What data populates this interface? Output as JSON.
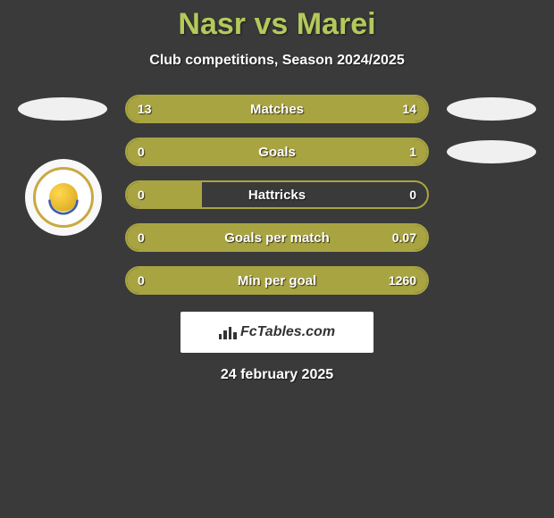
{
  "title": "Nasr vs Marei",
  "subtitle": "Club competitions, Season 2024/2025",
  "date": "24 february 2025",
  "fctables_label": "FcTables.com",
  "colors": {
    "accent": "#a9a442",
    "background": "#3a3a3a",
    "title_color": "#b3c95a",
    "bar_border": "#a9a442",
    "bar_fill": "#a9a442",
    "text": "#ffffff"
  },
  "rows": [
    {
      "label": "Matches",
      "left_value": "13",
      "right_value": "14",
      "left_pct": 48,
      "right_pct": 52,
      "show_left_ellipse": true,
      "show_right_ellipse": true
    },
    {
      "label": "Goals",
      "left_value": "0",
      "right_value": "1",
      "left_pct": 18,
      "right_pct": 82,
      "show_left_ellipse": false,
      "show_right_ellipse": true
    },
    {
      "label": "Hattricks",
      "left_value": "0",
      "right_value": "0",
      "left_pct": 25,
      "right_pct": 0,
      "show_left_ellipse": false,
      "show_right_ellipse": false
    },
    {
      "label": "Goals per match",
      "left_value": "0",
      "right_value": "0.07",
      "left_pct": 30,
      "right_pct": 70,
      "show_left_ellipse": false,
      "show_right_ellipse": false
    },
    {
      "label": "Min per goal",
      "left_value": "0",
      "right_value": "1260",
      "left_pct": 35,
      "right_pct": 65,
      "show_left_ellipse": false,
      "show_right_ellipse": false
    }
  ]
}
